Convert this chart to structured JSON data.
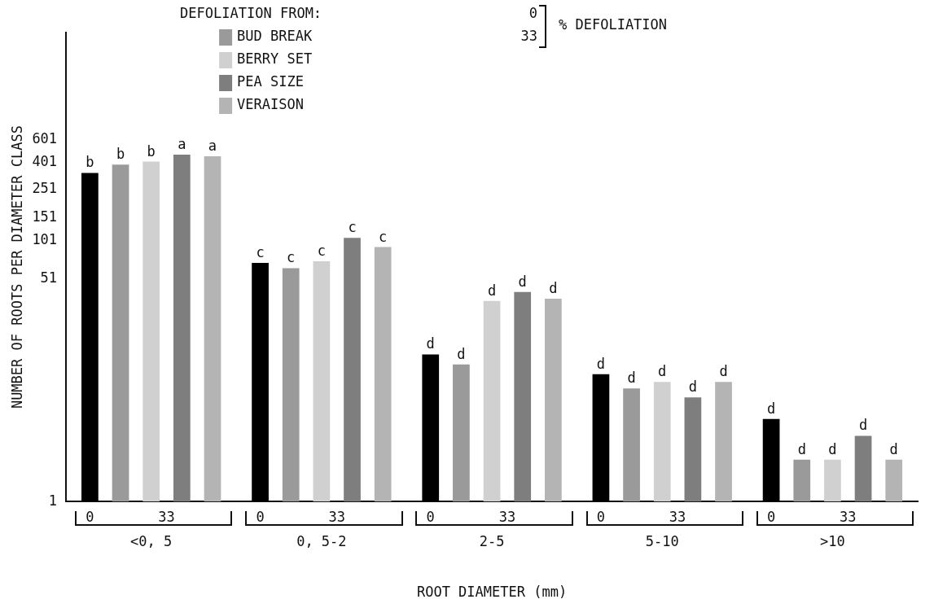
{
  "chart_data": {
    "type": "bar",
    "xlabel": "ROOT DIAMETER (mm)",
    "ylabel": "NUMBER OF ROOTS PER DIAMETER CLASS",
    "legend_title": "DEFOLIATION FROM:",
    "legend": "top left",
    "categories": [
      "<0, 5",
      "0, 5-2",
      "2-5",
      "5-10",
      ">10"
    ],
    "log": "y",
    "ylim": [
      1,
      4000
    ],
    "yticks": [
      1,
      51,
      101,
      151,
      251,
      401,
      601
    ],
    "grid": false,
    "annotations": [
      "0",
      "33",
      "% DEFOLIATION"
    ],
    "series": [
      {
        "color": "#000000",
        "values": [
          334,
          68,
          13.5,
          9.5,
          4.3
        ],
        "value_labels": [
          "b",
          "c",
          "d",
          "d",
          "d"
        ]
      },
      {
        "name": "BUD BREAK",
        "color": "#9a9a9a",
        "values": [
          387,
          62,
          11.3,
          7.4,
          2.1
        ],
        "value_labels": [
          "b",
          "c",
          "d",
          "d",
          "d"
        ]
      },
      {
        "name": "BERRY SET",
        "color": "#d0d0d0",
        "values": [
          408,
          70,
          34.7,
          8.3,
          2.1
        ],
        "value_labels": [
          "b",
          "c",
          "d",
          "d",
          "d"
        ]
      },
      {
        "name": "PEA SIZE",
        "color": "#7e7e7e",
        "values": [
          461,
          106,
          40.7,
          6.3,
          3.2
        ],
        "value_labels": [
          "a",
          "c",
          "d",
          "d",
          "d"
        ]
      },
      {
        "name": "VERAISON",
        "color": "#b4b4b4",
        "values": [
          449,
          90,
          36.1,
          8.3,
          2.1
        ],
        "value_labels": [
          "a",
          "c",
          "d",
          "d",
          "d"
        ]
      }
    ]
  }
}
